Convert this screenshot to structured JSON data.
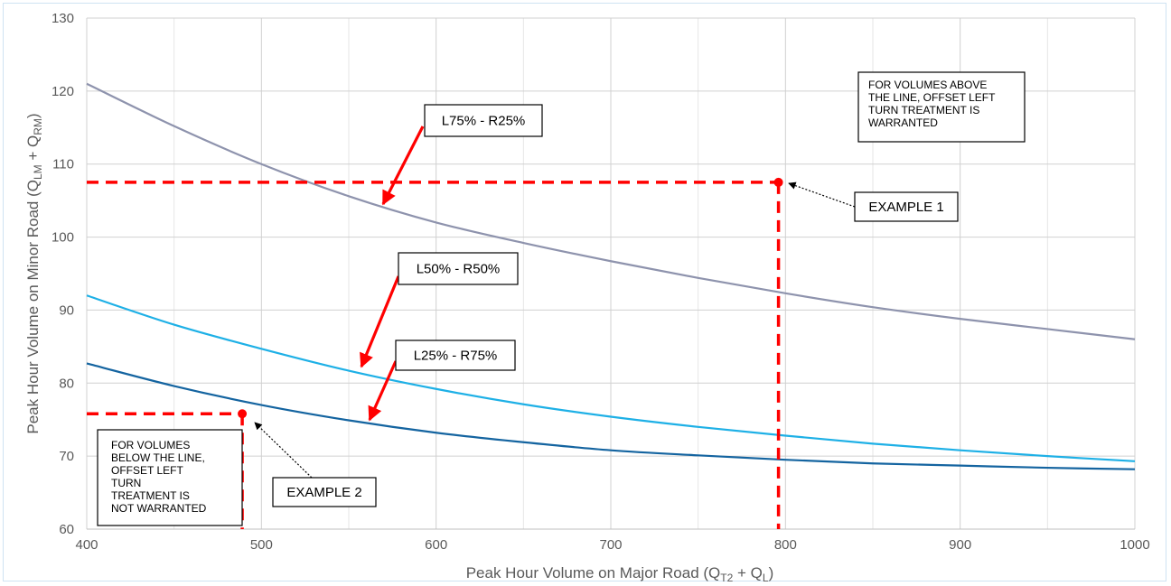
{
  "chart_data": {
    "type": "line",
    "title": "",
    "xlabel": "Peak Hour Volume on Major Road (Q",
    "xlabel_sub1": "T2",
    "xlabel_mid": " + Q",
    "xlabel_sub2": "L",
    "xlabel_end": ")",
    "ylabel": "Peak Hour Volume on Minor Road (Q",
    "ylabel_sub1": "LM",
    "ylabel_mid": " + Q",
    "ylabel_sub2": "RM",
    "ylabel_end": ")",
    "xlim": [
      400,
      1000
    ],
    "ylim": [
      60,
      130
    ],
    "xticks": [
      400,
      500,
      600,
      700,
      800,
      900,
      1000
    ],
    "yticks": [
      60,
      70,
      80,
      90,
      100,
      110,
      120,
      130
    ],
    "grid": true,
    "x": [
      400,
      450,
      500,
      550,
      600,
      650,
      700,
      750,
      800,
      850,
      900,
      950,
      1000
    ],
    "series": [
      {
        "name": "L75% - R25%",
        "color": "#8e93ad",
        "values": [
          121,
          115.2,
          110,
          105.6,
          102,
          99.2,
          96.7,
          94.4,
          92.3,
          90.4,
          88.8,
          87.4,
          86
        ]
      },
      {
        "name": "L50% - R50%",
        "color": "#1eb0e6",
        "values": [
          92,
          88,
          84.7,
          81.7,
          79.2,
          77.1,
          75.4,
          74,
          72.8,
          71.7,
          70.8,
          70,
          69.3
        ]
      },
      {
        "name": "L25% - R75%",
        "color": "#1464a0",
        "values": [
          82.7,
          79.6,
          77,
          74.9,
          73.2,
          71.9,
          70.8,
          70.1,
          69.5,
          69,
          68.7,
          68.4,
          68.2
        ]
      }
    ],
    "examples": [
      {
        "label": "EXAMPLE 1",
        "x": 796,
        "y": 107.5,
        "color": "#ff0000"
      },
      {
        "label": "EXAMPLE 2",
        "x": 489,
        "y": 75.8,
        "color": "#ff0000"
      }
    ],
    "annotations": {
      "above": [
        "FOR VOLUMES ABOVE",
        "THE LINE, OFFSET LEFT",
        "TURN TREATMENT IS",
        "WARRANTED"
      ],
      "below": [
        "FOR VOLUMES",
        "BELOW THE LINE,",
        "OFFSET LEFT",
        "TURN",
        "TREATMENT IS",
        "NOT WARRANTED"
      ]
    }
  }
}
